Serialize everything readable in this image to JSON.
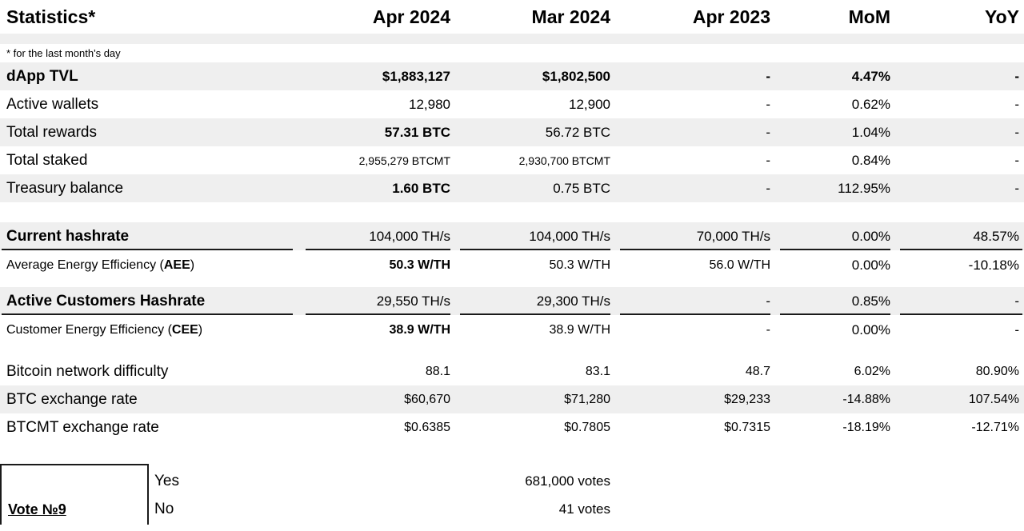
{
  "colors": {
    "stripe": "#efefef",
    "text": "#000000",
    "border": "#1a1a1a"
  },
  "table": {
    "columns": [
      "Statistics*",
      "Apr 2024",
      "Mar 2024",
      "Apr 2023",
      "MoM",
      "YoY"
    ],
    "footnote": "* for the last month's day",
    "sections": [
      {
        "name": "overview",
        "rows": [
          {
            "label": "dApp TVL",
            "label_bold": true,
            "shaded": true,
            "row_bold": true,
            "values": [
              "$1,883,127",
              "$1,802,500",
              "-",
              "4.47%",
              "-"
            ]
          },
          {
            "label": "Active wallets",
            "values": [
              "12,980",
              "12,900",
              "-",
              "0.62%",
              "-"
            ]
          },
          {
            "label": "Total rewards",
            "shaded": true,
            "bold_cols": [
              0
            ],
            "values": [
              "57.31 BTC",
              "56.72 BTC",
              "-",
              "1.04%",
              "-"
            ]
          },
          {
            "label": "Total staked",
            "small_cols": [
              0,
              1
            ],
            "values": [
              "2,955,279 BTCMT",
              "2,930,700 BTCMT",
              "-",
              "0.84%",
              "-"
            ]
          },
          {
            "label": "Treasury balance",
            "shaded": true,
            "bold_cols": [
              0
            ],
            "values": [
              "1.60 BTC",
              "0.75 BTC",
              "-",
              "112.95%",
              "-"
            ]
          }
        ]
      },
      {
        "name": "hashrate",
        "rows": [
          {
            "label": "Current hashrate",
            "label_bold": true,
            "shaded": true,
            "underline": true,
            "values": [
              "104,000 TH/s",
              "104,000 TH/s",
              "70,000 TH/s",
              "0.00%",
              "48.57%"
            ]
          },
          {
            "label": "Average Energy Efficiency (AEE)",
            "label_accent": "AEE",
            "sub": true,
            "bold_cols": [
              0
            ],
            "med_cols": [
              0,
              1,
              2
            ],
            "values": [
              "50.3 W/TH",
              "50.3 W/TH",
              "56.0 W/TH",
              "0.00%",
              "-10.18%"
            ]
          },
          {
            "label": "Active Customers Hashrate",
            "label_bold": true,
            "shaded": true,
            "underline": true,
            "values": [
              "29,550 TH/s",
              "29,300 TH/s",
              "-",
              "0.85%",
              "-"
            ]
          },
          {
            "label": "Customer Energy Efficiency (CEE)",
            "label_accent": "CEE",
            "sub": true,
            "bold_cols": [
              0
            ],
            "med_cols": [
              0,
              1,
              2
            ],
            "values": [
              "38.9 W/TH",
              "38.9 W/TH",
              "-",
              "0.00%",
              "-"
            ]
          }
        ]
      },
      {
        "name": "market",
        "rows": [
          {
            "label": "Bitcoin network difficulty",
            "med_cols": [
              0,
              1,
              2,
              3,
              4
            ],
            "values": [
              "88.1",
              "83.1",
              "48.7",
              "6.02%",
              "80.90%"
            ]
          },
          {
            "label": "BTC exchange rate",
            "shaded": true,
            "med_cols": [
              0,
              1,
              2,
              3,
              4
            ],
            "values": [
              "$60,670",
              "$71,280",
              "$29,233",
              "-14.88%",
              "107.54%"
            ]
          },
          {
            "label": "BTCMT exchange rate",
            "med_cols": [
              0,
              1,
              2,
              3,
              4
            ],
            "values": [
              "$0.6385",
              "$0.7805",
              "$0.7315",
              "-18.19%",
              "-12.71%"
            ]
          }
        ]
      }
    ]
  },
  "vote": {
    "title": "Vote №9",
    "options": [
      {
        "label": "Yes",
        "votes": "681,000 votes"
      },
      {
        "label": "No",
        "votes": "41 votes"
      }
    ]
  }
}
